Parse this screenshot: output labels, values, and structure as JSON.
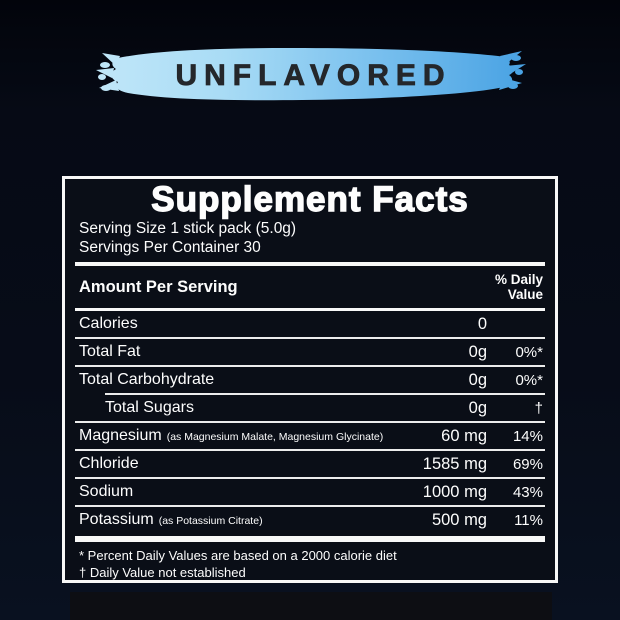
{
  "banner": {
    "label": "UNFLAVORED",
    "text_color": "#24272b",
    "brush_gradient": [
      "#c2e7f9",
      "#a9dcf5",
      "#79c0ee",
      "#47a1e3"
    ]
  },
  "label": {
    "title": "Supplement Facts",
    "serving_size": "Serving Size 1 stick pack (5.0g)",
    "servings_per_container": "Servings Per Container 30",
    "header": {
      "amount_per_serving": "Amount Per Serving",
      "daily_value_line1": "% Daily",
      "daily_value_line2": "Value"
    },
    "rows": [
      {
        "name": "Calories",
        "sub": "",
        "amount": "0",
        "dv": "",
        "indent": false,
        "divider_after": "full"
      },
      {
        "name": "Total Fat",
        "sub": "",
        "amount": "0g",
        "dv": "0%*",
        "indent": false,
        "divider_after": "full"
      },
      {
        "name": "Total Carbohydrate",
        "sub": "",
        "amount": "0g",
        "dv": "0%*",
        "indent": false,
        "divider_after": "indent"
      },
      {
        "name": "Total Sugars",
        "sub": "",
        "amount": "0g",
        "dv": "†",
        "indent": true,
        "divider_after": "full"
      },
      {
        "name": "Magnesium",
        "sub": "(as Magnesium Malate, Magnesium Glycinate)",
        "amount": "60 mg",
        "dv": "14%",
        "indent": false,
        "divider_after": "full"
      },
      {
        "name": "Chloride",
        "sub": "",
        "amount": "1585 mg",
        "dv": "69%",
        "indent": false,
        "divider_after": "full"
      },
      {
        "name": "Sodium",
        "sub": "",
        "amount": "1000 mg",
        "dv": "43%",
        "indent": false,
        "divider_after": "full"
      },
      {
        "name": "Potassium",
        "sub": "(as Potassium Citrate)",
        "amount": "500 mg",
        "dv": "11%",
        "indent": false,
        "divider_after": "none"
      }
    ],
    "footnotes": [
      "* Percent Daily Values are based on a 2000 calorie diet",
      "† Daily Value not established"
    ],
    "panel_background": "#0a0e17",
    "border_color": "#f8f8f8",
    "text_color": "#fdfdfd"
  },
  "page_background": "#060a15"
}
